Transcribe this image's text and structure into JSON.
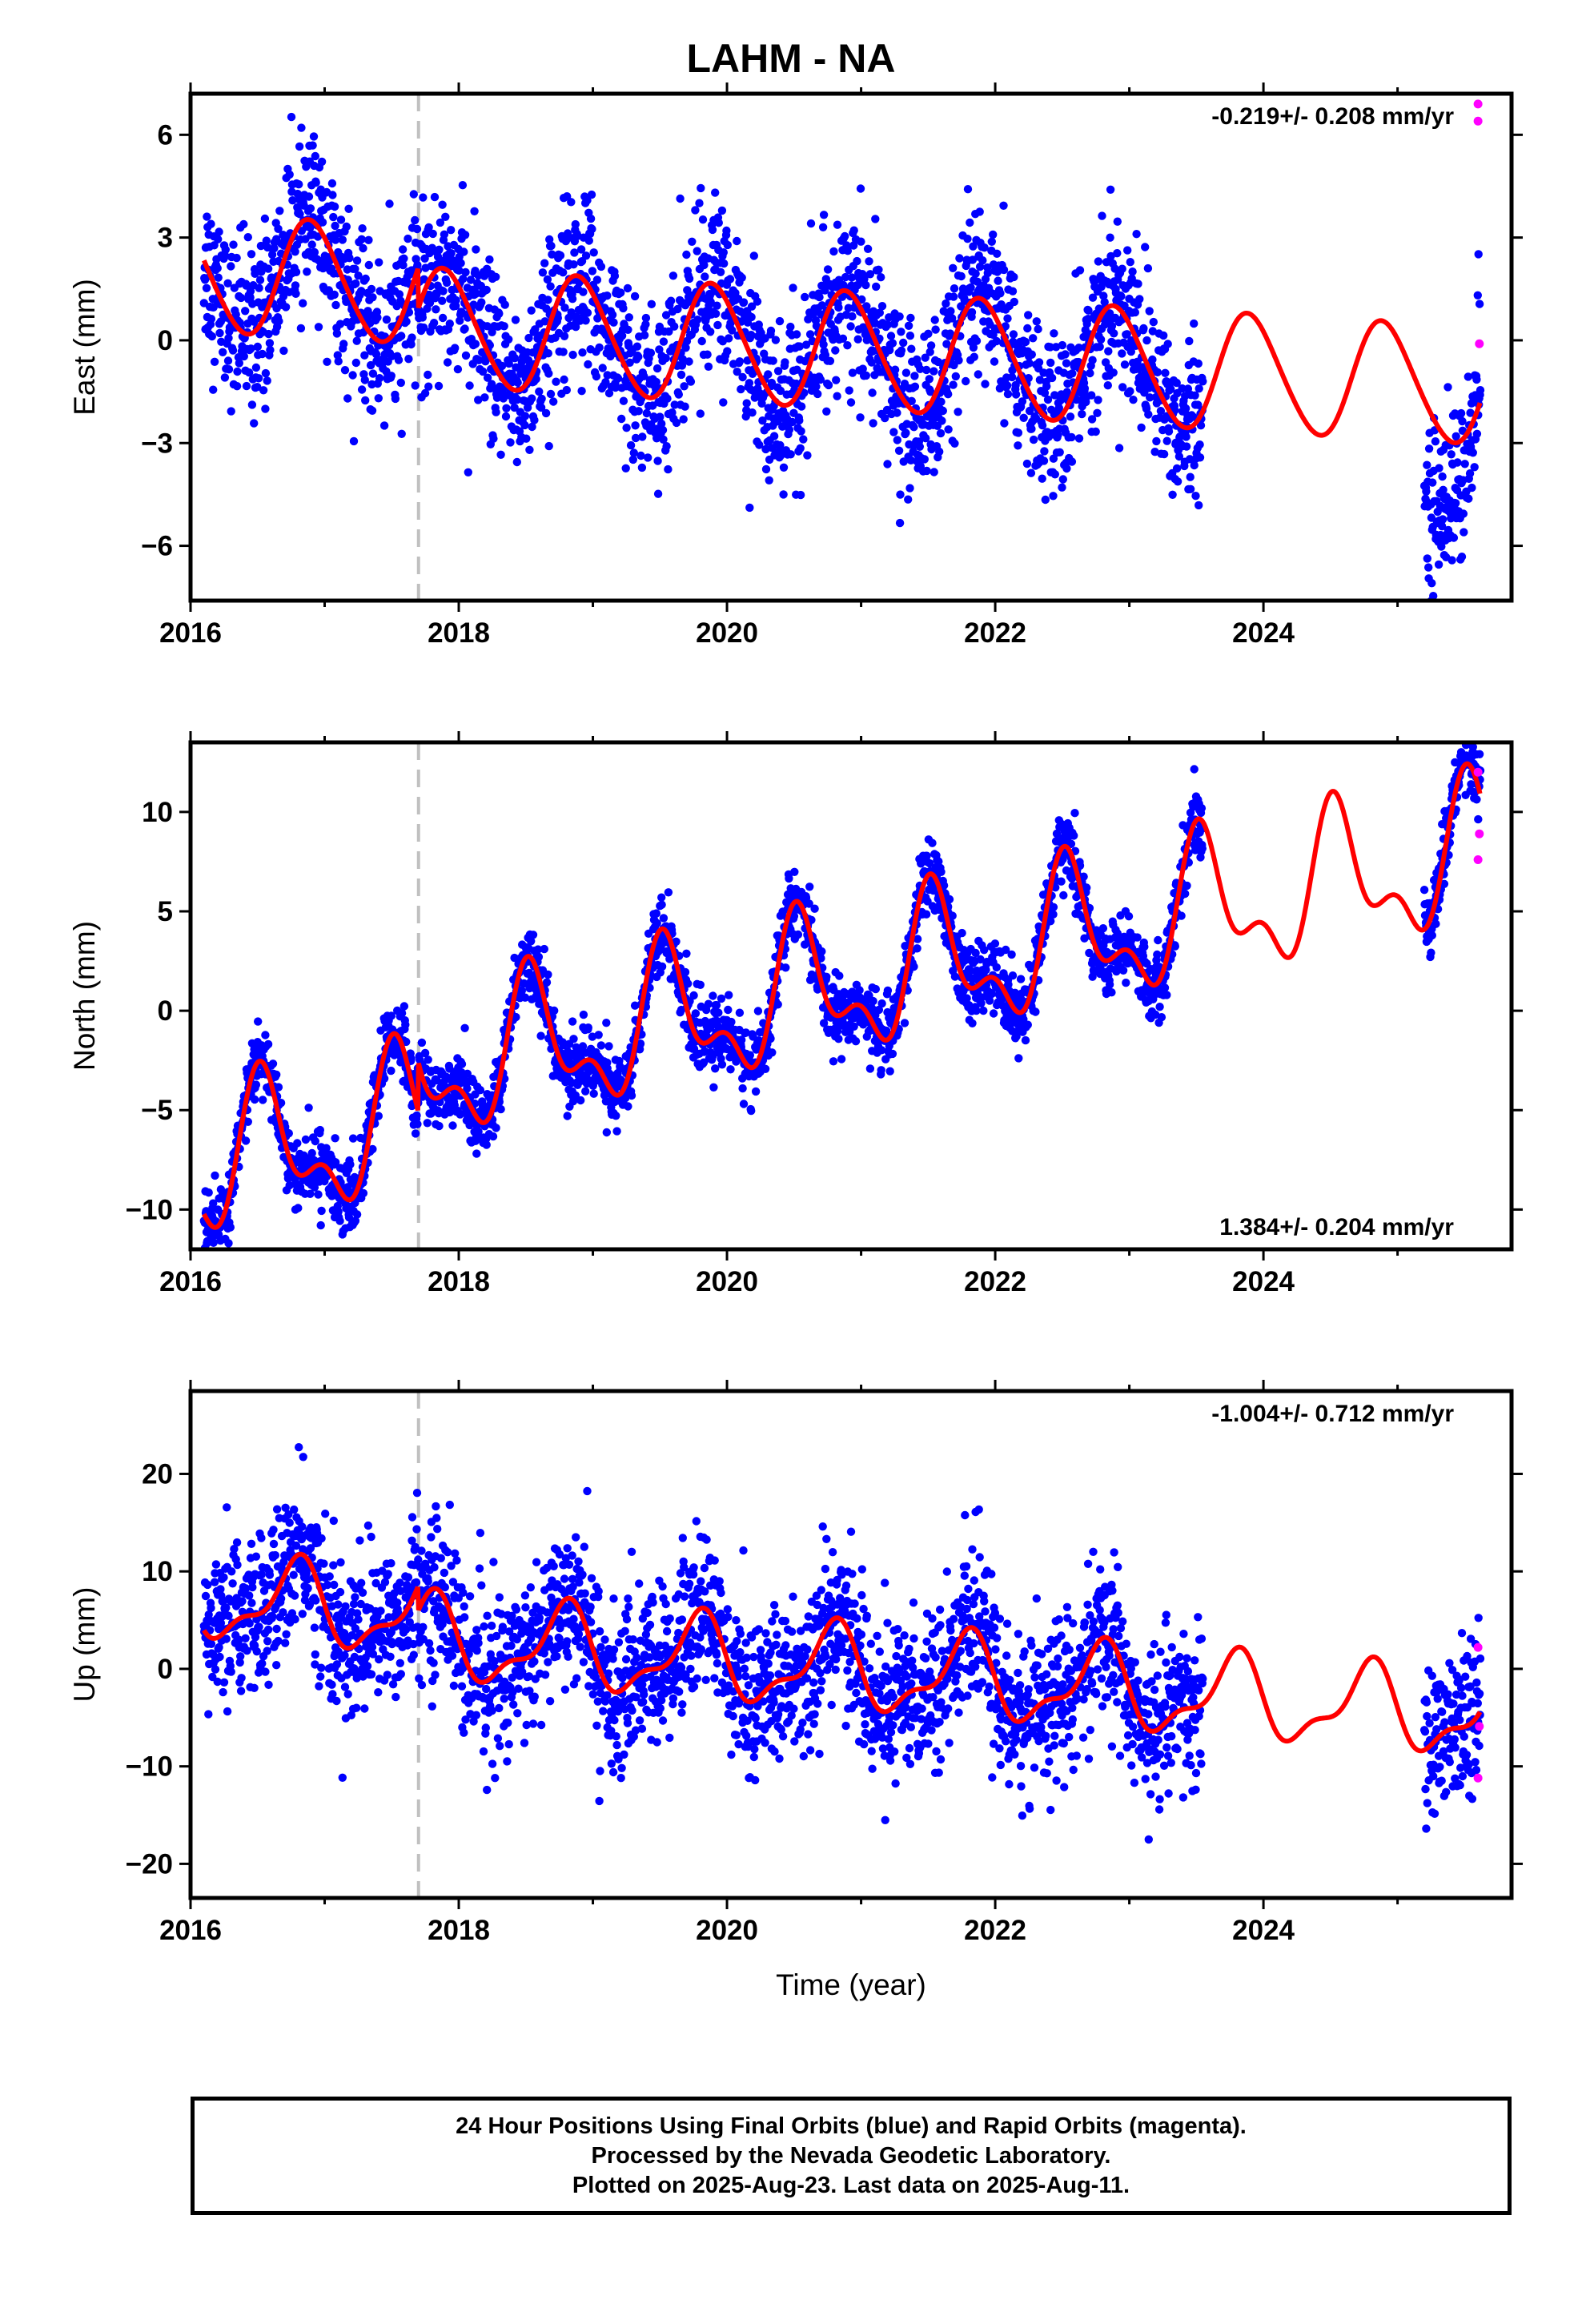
{
  "title": "LAHM - NA",
  "footer": {
    "line1": "24 Hour Positions Using Final Orbits (blue) and Rapid Orbits (magenta).",
    "line2": "Processed by the Nevada Geodetic Laboratory.",
    "line3": "Plotted on 2025-Aug-23. Last data on 2025-Aug-11."
  },
  "colors": {
    "final": "#0000ff",
    "rapid": "#ff00ff",
    "model": "#ff0000",
    "event": "#c0c0c0"
  },
  "chart_data": [
    {
      "type": "scatter",
      "ylabel": "East (mm)",
      "rate_text": "-0.219+/- 0.208 mm/yr",
      "rate_position": "top-right",
      "xlim": [
        2016.0,
        2025.85
      ],
      "ylim": [
        -7.6,
        7.2
      ],
      "yticks": [
        -6,
        -3,
        0,
        3,
        6
      ],
      "ytick_labels": [
        "−6",
        "−3",
        "0",
        "3",
        "6"
      ],
      "xticks": [
        2016,
        2018,
        2020,
        2022,
        2024
      ],
      "xtick_labels": [
        "2016",
        "2018",
        "2020",
        "2022",
        "2024"
      ],
      "event_line_x": 2017.7,
      "model": {
        "offset": -0.3,
        "trend": -0.219,
        "amp1": 1.7,
        "phase1": 2017.9,
        "amp2": 0.15,
        "phase2": 2017.8,
        "t0": 2020.8,
        "step": 1.2
      },
      "final_segments": [
        [
          2016.1,
          2023.55
        ],
        [
          2025.2,
          2025.62
        ]
      ],
      "scatter_sd": 1.2,
      "recent_bias": -3.0,
      "rapid_points": [
        [
          2025.6,
          6.9
        ],
        [
          2025.6,
          6.4
        ],
        [
          2025.61,
          -0.1
        ]
      ]
    },
    {
      "type": "scatter",
      "ylabel": "North (mm)",
      "rate_text": "1.384+/- 0.204 mm/yr",
      "rate_position": "bottom-right",
      "xlim": [
        2016.0,
        2025.85
      ],
      "ylim": [
        -12.0,
        13.5
      ],
      "yticks": [
        -10,
        -5,
        0,
        5,
        10
      ],
      "ytick_labels": [
        "−10",
        "−5",
        "0",
        "5",
        "10"
      ],
      "xticks": [
        2016,
        2018,
        2020,
        2022,
        2024
      ],
      "xtick_labels": [
        "2016",
        "2018",
        "2020",
        "2022",
        "2024"
      ],
      "event_line_x": 2017.7,
      "model": {
        "offset": 1.2,
        "trend": 1.384,
        "amp1": 3.1,
        "phase1": 2016.55,
        "amp2": 1.7,
        "phase2": 2016.5,
        "t0": 2020.8,
        "step": -2.5
      },
      "final_segments": [
        [
          2016.1,
          2023.55
        ],
        [
          2025.2,
          2025.62
        ]
      ],
      "scatter_sd": 0.9,
      "recent_bias": 0.0,
      "rapid_points": [
        [
          2025.6,
          12.0
        ],
        [
          2025.61,
          8.9
        ],
        [
          2025.6,
          7.6
        ]
      ]
    },
    {
      "type": "scatter",
      "ylabel": "Up (mm)",
      "rate_text": "-1.004+/- 0.712 mm/yr",
      "rate_position": "top-right",
      "xlim": [
        2016.0,
        2025.85
      ],
      "ylim": [
        -23.5,
        28.5
      ],
      "yticks": [
        -20,
        -10,
        0,
        10,
        20
      ],
      "ytick_labels": [
        "−20",
        "−10",
        "0",
        "10",
        "20"
      ],
      "xticks": [
        2016,
        2018,
        2020,
        2022,
        2024
      ],
      "xtick_labels": [
        "2016",
        "2018",
        "2020",
        "2022",
        "2024"
      ],
      "event_line_x": 2017.7,
      "model": {
        "offset": 0.0,
        "trend": -1.004,
        "amp1": 3.9,
        "phase1": 2016.78,
        "amp2": 1.6,
        "phase2": 2016.85,
        "t0": 2020.8,
        "step": 2.5
      },
      "final_segments": [
        [
          2016.1,
          2023.55
        ],
        [
          2025.2,
          2025.62
        ]
      ],
      "scatter_sd": 4.0,
      "recent_bias": 0.0,
      "rapid_points": [
        [
          2025.6,
          2.2
        ],
        [
          2025.61,
          -5.9
        ],
        [
          2025.6,
          -11.2
        ]
      ]
    }
  ],
  "xlabel": "Time (year)"
}
